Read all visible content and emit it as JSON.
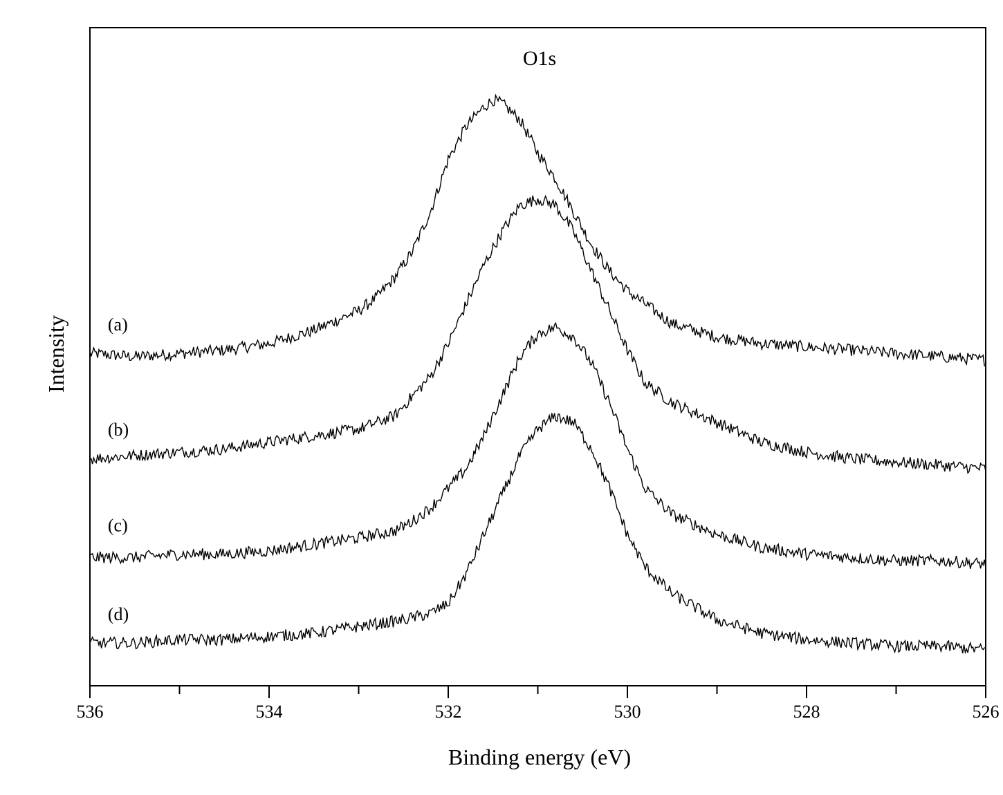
{
  "chart_data": {
    "type": "line",
    "title": "O1s",
    "xlabel": "Binding energy (eV)",
    "ylabel": "Intensity",
    "xlim": [
      536,
      526
    ],
    "x_reversed": true,
    "ylim": [
      0,
      1
    ],
    "y_ticks_shown": false,
    "grid": false,
    "legend": "none",
    "x_ticks": [
      536,
      534,
      532,
      530,
      528,
      526
    ],
    "x_tick_labels": [
      "536",
      "534",
      "532",
      "530",
      "528",
      "526"
    ],
    "x_minor_ticks": [
      535,
      533,
      531,
      529,
      527
    ],
    "line_color": "#000000",
    "series": [
      {
        "label": "(a)",
        "label_x": 535.8,
        "label_y": 0.54,
        "x": [
          536.0,
          535.5,
          535.0,
          534.5,
          534.0,
          533.5,
          533.0,
          532.8,
          532.6,
          532.4,
          532.2,
          532.0,
          531.8,
          531.6,
          531.5,
          531.4,
          531.2,
          531.0,
          530.8,
          530.6,
          530.4,
          530.2,
          530.0,
          529.8,
          529.5,
          529.0,
          528.5,
          528.0,
          527.5,
          527.0,
          526.5,
          526.0
        ],
        "y": [
          0.505,
          0.5,
          0.505,
          0.51,
          0.52,
          0.54,
          0.57,
          0.59,
          0.62,
          0.66,
          0.72,
          0.8,
          0.85,
          0.88,
          0.89,
          0.885,
          0.86,
          0.81,
          0.77,
          0.72,
          0.67,
          0.63,
          0.6,
          0.58,
          0.55,
          0.53,
          0.52,
          0.515,
          0.51,
          0.505,
          0.5,
          0.495
        ]
      },
      {
        "label": "(b)",
        "label_x": 535.8,
        "label_y": 0.38,
        "x": [
          536.0,
          535.5,
          535.0,
          534.5,
          534.0,
          533.5,
          533.0,
          532.6,
          532.4,
          532.2,
          532.0,
          531.8,
          531.6,
          531.4,
          531.2,
          531.0,
          530.8,
          530.6,
          530.4,
          530.2,
          530.0,
          529.8,
          529.5,
          529.0,
          528.5,
          528.0,
          527.5,
          527.0,
          526.5,
          526.0
        ],
        "y": [
          0.345,
          0.35,
          0.355,
          0.36,
          0.37,
          0.38,
          0.39,
          0.41,
          0.44,
          0.47,
          0.52,
          0.58,
          0.64,
          0.69,
          0.73,
          0.74,
          0.73,
          0.69,
          0.63,
          0.57,
          0.51,
          0.46,
          0.43,
          0.4,
          0.37,
          0.355,
          0.345,
          0.34,
          0.335,
          0.33
        ]
      },
      {
        "label": "(c)",
        "label_x": 535.8,
        "label_y": 0.235,
        "x": [
          536.0,
          535.5,
          535.0,
          534.5,
          534.0,
          533.5,
          533.0,
          532.6,
          532.4,
          532.2,
          532.0,
          531.8,
          531.6,
          531.4,
          531.2,
          531.0,
          530.8,
          530.6,
          530.4,
          530.2,
          530.0,
          529.8,
          529.5,
          529.0,
          528.5,
          528.0,
          527.5,
          527.0,
          526.5,
          526.0
        ],
        "y": [
          0.195,
          0.195,
          0.2,
          0.2,
          0.205,
          0.215,
          0.225,
          0.235,
          0.25,
          0.27,
          0.3,
          0.33,
          0.38,
          0.44,
          0.5,
          0.535,
          0.545,
          0.53,
          0.49,
          0.43,
          0.36,
          0.3,
          0.26,
          0.23,
          0.21,
          0.2,
          0.195,
          0.19,
          0.19,
          0.185
        ]
      },
      {
        "label": "(d)",
        "label_x": 535.8,
        "label_y": 0.1,
        "x": [
          536.0,
          535.5,
          535.0,
          534.5,
          534.0,
          533.5,
          533.0,
          532.5,
          532.2,
          532.0,
          531.8,
          531.6,
          531.4,
          531.2,
          531.0,
          530.8,
          530.6,
          530.4,
          530.2,
          530.0,
          529.8,
          529.5,
          529.0,
          528.5,
          528.0,
          527.5,
          527.0,
          526.5,
          526.0
        ],
        "y": [
          0.065,
          0.065,
          0.07,
          0.07,
          0.075,
          0.08,
          0.09,
          0.1,
          0.11,
          0.125,
          0.17,
          0.23,
          0.29,
          0.35,
          0.39,
          0.41,
          0.4,
          0.36,
          0.3,
          0.23,
          0.18,
          0.14,
          0.1,
          0.08,
          0.07,
          0.065,
          0.06,
          0.06,
          0.055
        ]
      }
    ]
  }
}
